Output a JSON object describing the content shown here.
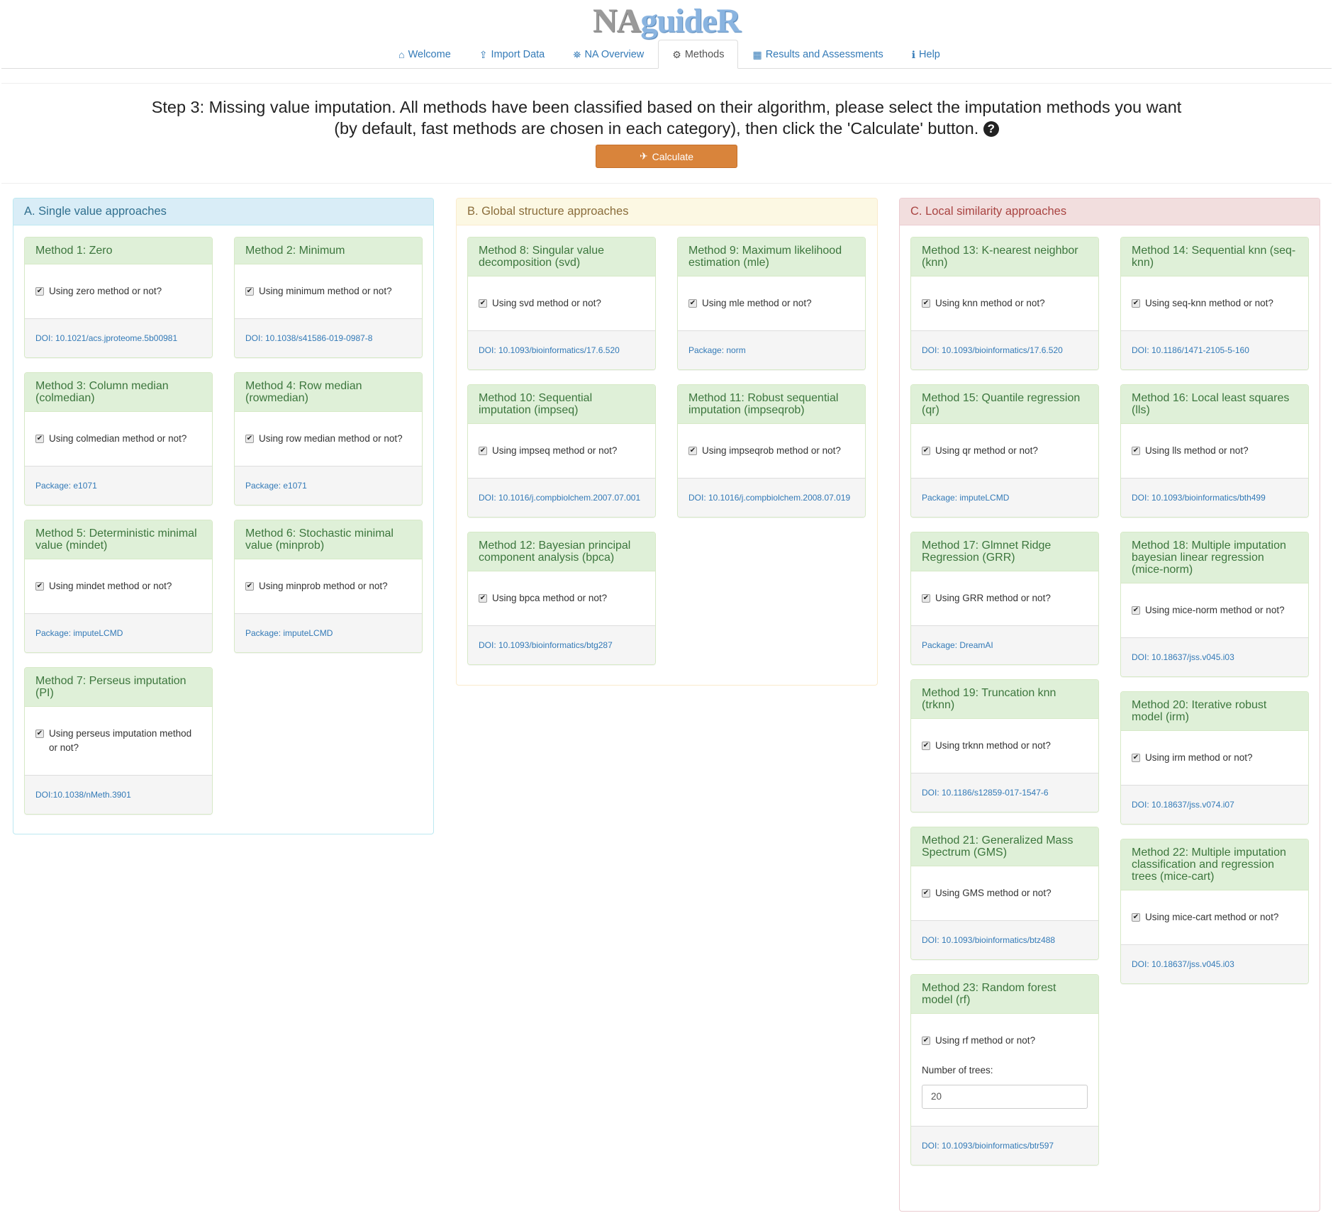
{
  "app": {
    "title_part1": "NA",
    "title_part2": "guideR"
  },
  "nav": [
    {
      "label": "Welcome",
      "icon": "home-icon",
      "glyph": "⌂"
    },
    {
      "label": "Import Data",
      "icon": "upload-icon",
      "glyph": "⇪"
    },
    {
      "label": "NA Overview",
      "icon": "binoculars-icon",
      "glyph": "⛯"
    },
    {
      "label": "Methods",
      "icon": "gears-icon",
      "glyph": "⚙",
      "active": true
    },
    {
      "label": "Results and Assessments",
      "icon": "table-icon",
      "glyph": "▦"
    },
    {
      "label": "Help",
      "icon": "info-icon",
      "glyph": "ℹ"
    }
  ],
  "step": {
    "text": "Step 3: Missing value imputation. All methods have been classified based on their algorithm, please select the imputation methods you want (by default, fast methods are chosen in each category), then click the 'Calculate' button.",
    "help_icon": "question-circle-icon",
    "help_glyph": "?"
  },
  "calculate": {
    "label": "Calculate",
    "icon": "paper-plane-icon",
    "glyph": "✈",
    "color": "#d9843b"
  },
  "panels": [
    {
      "title": "A. Single value approaches",
      "color": "#d9edf7",
      "methods": [
        {
          "title": "Method 1: Zero",
          "check": "Using zero method or not?",
          "checked": true,
          "ref": "DOI: 10.1021/acs.jproteome.5b00981"
        },
        {
          "title": "Method 2: Minimum",
          "check": "Using minimum method or not?",
          "checked": true,
          "ref": "DOI: 10.1038/s41586-019-0987-8"
        },
        {
          "title": "Method 3: Column median (colmedian)",
          "check": "Using colmedian method or not?",
          "checked": true,
          "ref": "Package: e1071"
        },
        {
          "title": "Method 4: Row median (rowmedian)",
          "check": "Using row median method or not?",
          "checked": true,
          "ref": "Package: e1071"
        },
        {
          "title": "Method 5: Deterministic minimal value (mindet)",
          "check": "Using mindet method or not?",
          "checked": true,
          "ref": "Package: imputeLCMD"
        },
        {
          "title": "Method 6: Stochastic minimal value (minprob)",
          "check": "Using minprob method or not?",
          "checked": true,
          "ref": "Package: imputeLCMD"
        },
        {
          "title": "Method 7: Perseus imputation (PI)",
          "check": "Using perseus imputation method or not?",
          "checked": true,
          "ref": "DOI:10.1038/nMeth.3901"
        }
      ]
    },
    {
      "title": "B. Global structure approaches",
      "color": "#fcf8e3",
      "methods": [
        {
          "title": "Method 8: Singular value decomposition (svd)",
          "check": "Using svd method or not?",
          "checked": true,
          "ref": "DOI: 10.1093/bioinformatics/17.6.520"
        },
        {
          "title": "Method 9: Maximum likelihood estimation (mle)",
          "check": "Using mle method or not?",
          "checked": true,
          "ref": "Package: norm"
        },
        {
          "title": "Method 10: Sequential imputation (impseq)",
          "check": "Using impseq method or not?",
          "checked": true,
          "ref": "DOI: 10.1016/j.compbiolchem.2007.07.001"
        },
        {
          "title": "Method 11: Robust sequential imputation (impseqrob)",
          "check": "Using impseqrob method or not?",
          "checked": true,
          "ref": "DOI: 10.1016/j.compbiolchem.2008.07.019"
        },
        {
          "title": "Method 12: Bayesian principal component analysis (bpca)",
          "check": "Using bpca method or not?",
          "checked": true,
          "ref": "DOI: 10.1093/bioinformatics/btg287"
        }
      ]
    },
    {
      "title": "C. Local similarity approaches",
      "color": "#f2dede",
      "methods": [
        {
          "title": "Method 13: K-nearest neighbor (knn)",
          "check": "Using knn method or not?",
          "checked": true,
          "ref": "DOI: 10.1093/bioinformatics/17.6.520"
        },
        {
          "title": "Method 14: Sequential knn (seq-knn)",
          "check": "Using seq-knn method or not?",
          "checked": true,
          "ref": "DOI: 10.1186/1471-2105-5-160"
        },
        {
          "title": "Method 15: Quantile regression (qr)",
          "check": "Using qr method or not?",
          "checked": true,
          "ref": "Package: imputeLCMD"
        },
        {
          "title": "Method 16: Local least squares (lls)",
          "check": "Using lls method or not?",
          "checked": true,
          "ref": "DOI: 10.1093/bioinformatics/bth499"
        },
        {
          "title": "Method 17: Glmnet Ridge Regression (GRR)",
          "check": "Using GRR method or not?",
          "checked": true,
          "ref": "Package: DreamAI"
        },
        {
          "title": "Method 18: Multiple imputation bayesian linear regression (mice-norm)",
          "check": "Using mice-norm method or not?",
          "checked": true,
          "ref": "DOI: 10.18637/jss.v045.i03"
        },
        {
          "title": "Method 19: Truncation knn (trknn)",
          "check": "Using trknn method or not?",
          "checked": true,
          "ref": "DOI: 10.1186/s12859-017-1547-6"
        },
        {
          "title": "Method 20: Iterative robust model (irm)",
          "check": "Using irm method or not?",
          "checked": true,
          "ref": "DOI: 10.18637/jss.v074.i07"
        },
        {
          "title": "Method 21: Generalized Mass Spectrum (GMS)",
          "check": "Using GMS method or not?",
          "checked": true,
          "ref": "DOI: 10.1093/bioinformatics/btz488"
        },
        {
          "title": "Method 22: Multiple imputation classification and regression trees (mice-cart)",
          "check": "Using mice-cart method or not?",
          "checked": true,
          "ref": "DOI: 10.18637/jss.v045.i03"
        },
        {
          "title": "Method 23: Random forest model (rf)",
          "check": "Using rf method or not?",
          "checked": true,
          "ref": "DOI: 10.1093/bioinformatics/btr597",
          "extra_label": "Number of trees:",
          "extra_value": "20"
        }
      ]
    }
  ]
}
